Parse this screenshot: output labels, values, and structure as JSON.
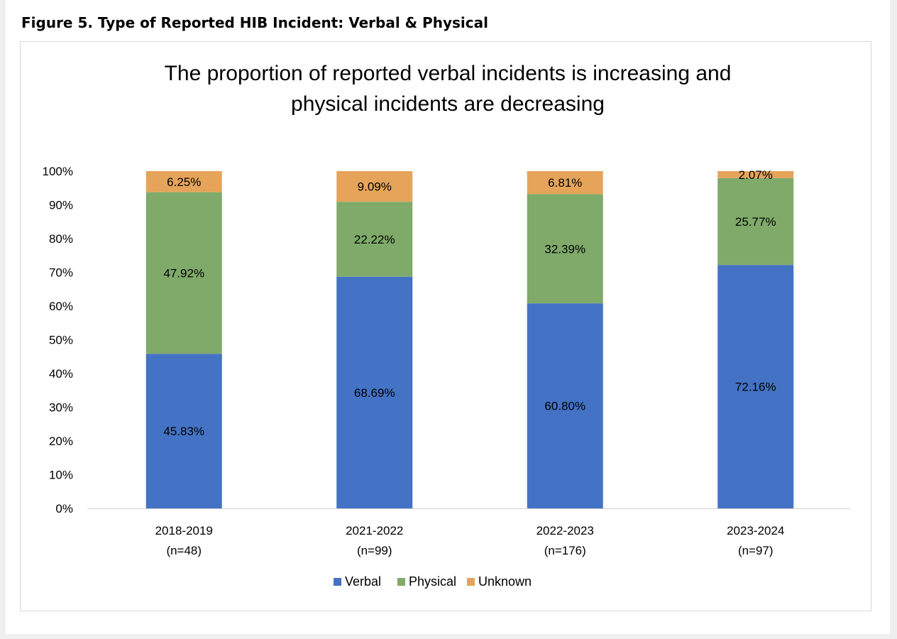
{
  "figure_caption": "Figure 5. Type of Reported HIB Incident: Verbal & Physical",
  "chart_data": {
    "type": "bar",
    "stacked": true,
    "title": [
      "The proportion of reported verbal incidents is increasing and",
      "physical incidents are decreasing"
    ],
    "categories": [
      [
        "2018-2019",
        "(n=48)"
      ],
      [
        "2021-2022",
        "(n=99)"
      ],
      [
        "2022-2023",
        "(n=176)"
      ],
      [
        "2023-2024",
        "(n=97)"
      ]
    ],
    "series": [
      {
        "name": "Verbal",
        "color": "#4472c4",
        "values": [
          45.83,
          68.69,
          60.8,
          72.16
        ],
        "labels": [
          "45.83%",
          "68.69%",
          "60.80%",
          "72.16%"
        ]
      },
      {
        "name": "Physical",
        "color": "#7faa6a",
        "values": [
          47.92,
          22.22,
          32.39,
          25.77
        ],
        "labels": [
          "47.92%",
          "22.22%",
          "32.39%",
          "25.77%"
        ]
      },
      {
        "name": "Unknown",
        "color": "#e5a45a",
        "values": [
          6.25,
          9.09,
          6.81,
          2.07
        ],
        "labels": [
          "6.25%",
          "9.09%",
          "6.81%",
          "2.07%"
        ]
      }
    ],
    "ylim": [
      0,
      100
    ],
    "yticks": [
      0,
      10,
      20,
      30,
      40,
      50,
      60,
      70,
      80,
      90,
      100
    ],
    "ytick_labels": [
      "0%",
      "10%",
      "20%",
      "30%",
      "40%",
      "50%",
      "60%",
      "70%",
      "80%",
      "90%",
      "100%"
    ],
    "grid": false,
    "legend_position": "bottom"
  }
}
